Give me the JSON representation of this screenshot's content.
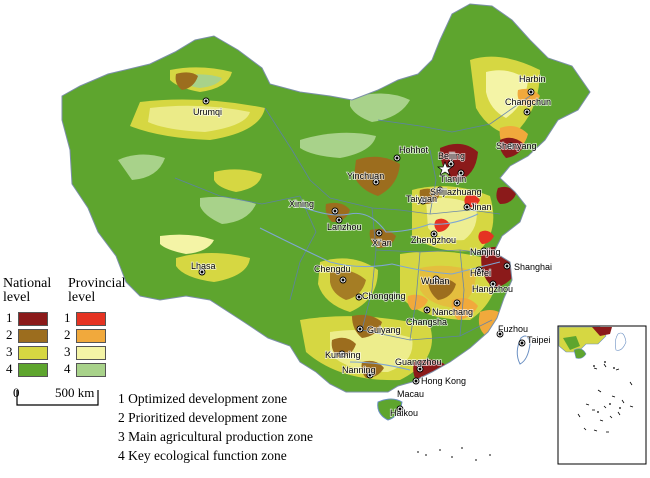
{
  "colors": {
    "national": [
      "#8b1a1a",
      "#9c6d1e",
      "#d6d742",
      "#5ea52e"
    ],
    "provincial": [
      "#e53322",
      "#f1a93c",
      "#f4f4a6",
      "#a8d28a"
    ],
    "water": "#7ea6d4",
    "boundary": "#5d7fb0"
  },
  "cities": [
    {
      "name": "Harbin"
    },
    {
      "name": "Changchun"
    },
    {
      "name": "Urumqi"
    },
    {
      "name": "Shenyang"
    },
    {
      "name": "Hohhot"
    },
    {
      "name": "Beijing"
    },
    {
      "name": "Tianjin"
    },
    {
      "name": "Yinchuan"
    },
    {
      "name": "Shijiazhuang"
    },
    {
      "name": "Taiyuan"
    },
    {
      "name": "Jinan"
    },
    {
      "name": "Xining"
    },
    {
      "name": "Lanzhou"
    },
    {
      "name": "Xi'an"
    },
    {
      "name": "Zhengzhou"
    },
    {
      "name": "Nanjing"
    },
    {
      "name": "Lhasa"
    },
    {
      "name": "Chengdu"
    },
    {
      "name": "Wuhan"
    },
    {
      "name": "Hefei"
    },
    {
      "name": "Shanghai"
    },
    {
      "name": "Chongqing"
    },
    {
      "name": "Hangzhou"
    },
    {
      "name": "Nanchang"
    },
    {
      "name": "Changsha"
    },
    {
      "name": "Guiyang"
    },
    {
      "name": "Fuzhou"
    },
    {
      "name": "Taipei"
    },
    {
      "name": "Kunming"
    },
    {
      "name": "Guangzhou"
    },
    {
      "name": "Nanning"
    },
    {
      "name": "Hong Kong"
    },
    {
      "name": "Macau"
    },
    {
      "name": "Haikou"
    }
  ],
  "legend": {
    "national_title": "National level",
    "provincial_title": "Provincial level",
    "numbers": [
      "1",
      "2",
      "3",
      "4"
    ]
  },
  "scale": {
    "start": "0",
    "end": "500 km"
  },
  "zones": [
    "1 Optimized development zone",
    "2 Prioritized development zone",
    "3 Main agricultural production zone",
    "4 Key ecological function zone"
  ]
}
